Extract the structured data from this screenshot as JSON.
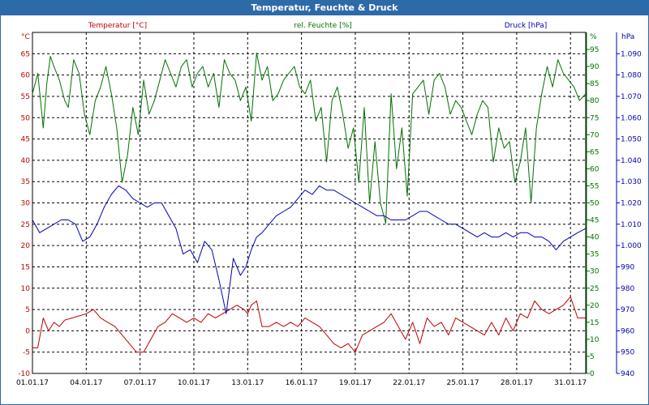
{
  "window": {
    "title": "Temperatur, Feuchte & Druck"
  },
  "colors": {
    "temperature": "#c00000",
    "humidity": "#007000",
    "pressure": "#0000b0",
    "grid": "#000000",
    "titlebar": "#2d6aa8"
  },
  "chart_data": {
    "type": "line",
    "title": "Temperatur, Feuchte & Druck",
    "x_start_day": 1,
    "x_end_day": 31.85,
    "x_tick_days": [
      1,
      4,
      7,
      10,
      13,
      16,
      19,
      22,
      25,
      28,
      31
    ],
    "x_tick_labels": [
      "01.01.17",
      "04.01.17",
      "07.01.17",
      "10.01.17",
      "13.01.17",
      "16.01.17",
      "19.01.17",
      "22.01.17",
      "25.01.17",
      "28.01.17",
      "31.01.17"
    ],
    "axes": {
      "temperature": {
        "label": "Temperatur [°C]",
        "unit": "°C",
        "ylim": [
          -10,
          70
        ],
        "ticks": [
          "-10",
          "-5",
          "0",
          "5",
          "10",
          "15",
          "20",
          "25",
          "30",
          "35",
          "40",
          "45",
          "50",
          "55",
          "60",
          "65"
        ]
      },
      "humidity": {
        "label": "rel. Feuchte [%]",
        "unit": "%",
        "ylim": [
          0,
          100
        ],
        "ticks": [
          "0",
          "5",
          "10",
          "15",
          "20",
          "25",
          "30",
          "35",
          "40",
          "45",
          "50",
          "55",
          "60",
          "65",
          "70",
          "75",
          "80",
          "85",
          "90",
          "95"
        ]
      },
      "pressure": {
        "label": "Druck [hPa]",
        "unit": "hPa",
        "ylim": [
          940,
          1100
        ],
        "ticks": [
          "940",
          "950",
          "960",
          "970",
          "980",
          "990",
          "1.000",
          "1.010",
          "1.020",
          "1.030",
          "1.040",
          "1.050",
          "1.060",
          "1.070",
          "1.080",
          "1.090"
        ]
      }
    },
    "series": [
      {
        "name": "Temperatur [°C]",
        "axis": "temperature",
        "x": [
          1,
          1.3,
          1.6,
          1.9,
          2.2,
          2.5,
          2.8,
          3.2,
          3.6,
          4.0,
          4.4,
          4.8,
          5.2,
          5.6,
          6.0,
          6.4,
          6.8,
          7.2,
          7.6,
          8.0,
          8.4,
          8.8,
          9.2,
          9.6,
          10.0,
          10.4,
          10.8,
          11.2,
          11.6,
          12.0,
          12.4,
          12.8,
          13.0,
          13.2,
          13.5,
          13.8,
          14.2,
          14.6,
          15.0,
          15.4,
          15.8,
          16.2,
          16.6,
          17.0,
          17.4,
          17.8,
          18.2,
          18.6,
          19.0,
          19.4,
          19.8,
          20.2,
          20.6,
          21.0,
          21.4,
          21.8,
          22.2,
          22.6,
          23.0,
          23.4,
          23.8,
          24.2,
          24.6,
          25.0,
          25.4,
          25.8,
          26.2,
          26.6,
          27.0,
          27.4,
          27.8,
          28.2,
          28.6,
          29.0,
          29.4,
          29.8,
          30.2,
          30.6,
          31.0,
          31.4,
          31.85
        ],
        "values": [
          -4,
          -4,
          3,
          0,
          2,
          1,
          2.5,
          3,
          3.5,
          4,
          5,
          3,
          2,
          1,
          -1,
          -3,
          -5,
          -5,
          -2,
          1,
          2,
          4,
          3,
          2,
          3,
          2,
          4,
          3,
          4,
          5,
          6,
          5,
          4,
          6,
          7,
          1,
          1,
          2,
          1,
          2,
          1,
          3,
          2,
          1,
          -1,
          -3,
          -4,
          -3,
          -5,
          -1,
          0,
          1,
          2,
          4,
          1,
          -2,
          2,
          -3,
          3,
          1,
          2,
          -1,
          3,
          2,
          1,
          0,
          -1,
          2,
          -1,
          3,
          0,
          4,
          3,
          7,
          5,
          4,
          5,
          6,
          8,
          3,
          3
        ]
      },
      {
        "name": "rel. Feuchte [%]",
        "axis": "humidity",
        "x": [
          1,
          1.3,
          1.6,
          1.8,
          2.0,
          2.2,
          2.5,
          2.8,
          3.0,
          3.3,
          3.6,
          3.9,
          4.2,
          4.5,
          4.8,
          5.1,
          5.4,
          5.7,
          6.0,
          6.3,
          6.6,
          6.9,
          7.2,
          7.5,
          7.8,
          8.1,
          8.4,
          8.7,
          9.0,
          9.3,
          9.6,
          9.9,
          10.2,
          10.5,
          10.8,
          11.1,
          11.4,
          11.7,
          12.0,
          12.3,
          12.6,
          12.9,
          13.2,
          13.5,
          13.8,
          14.1,
          14.4,
          14.7,
          15.0,
          15.3,
          15.6,
          15.9,
          16.2,
          16.5,
          16.8,
          17.1,
          17.4,
          17.7,
          18.0,
          18.3,
          18.6,
          18.9,
          19.2,
          19.5,
          19.8,
          20.1,
          20.4,
          20.7,
          21.0,
          21.3,
          21.6,
          21.9,
          22.2,
          22.5,
          22.8,
          23.1,
          23.4,
          23.7,
          24.0,
          24.3,
          24.6,
          24.9,
          25.2,
          25.5,
          25.8,
          26.1,
          26.4,
          26.7,
          27.0,
          27.3,
          27.6,
          27.9,
          28.2,
          28.5,
          28.8,
          29.1,
          29.4,
          29.7,
          30.0,
          30.3,
          30.6,
          30.9,
          31.2,
          31.5,
          31.85
        ],
        "values": [
          82,
          88,
          72,
          85,
          93,
          90,
          86,
          80,
          78,
          92,
          88,
          76,
          70,
          80,
          84,
          90,
          82,
          72,
          56,
          64,
          78,
          70,
          86,
          76,
          80,
          86,
          92,
          88,
          84,
          90,
          92,
          84,
          88,
          90,
          84,
          88,
          78,
          92,
          88,
          86,
          80,
          84,
          74,
          94,
          86,
          90,
          80,
          82,
          86,
          88,
          90,
          84,
          82,
          86,
          74,
          78,
          62,
          80,
          84,
          76,
          66,
          72,
          56,
          78,
          50,
          68,
          50,
          44,
          82,
          60,
          72,
          52,
          82,
          84,
          86,
          76,
          86,
          88,
          84,
          76,
          80,
          78,
          74,
          70,
          76,
          80,
          78,
          62,
          72,
          66,
          68,
          56,
          62,
          72,
          50,
          72,
          82,
          90,
          84,
          92,
          88,
          86,
          84,
          80,
          82
        ]
      },
      {
        "name": "Druck [hPa]",
        "axis": "pressure",
        "x": [
          1,
          1.4,
          1.8,
          2.2,
          2.6,
          3.0,
          3.4,
          3.8,
          4.2,
          4.6,
          5.0,
          5.4,
          5.8,
          6.2,
          6.6,
          7.0,
          7.4,
          7.8,
          8.2,
          8.6,
          9.0,
          9.4,
          9.8,
          10.2,
          10.6,
          11.0,
          11.4,
          11.8,
          12.2,
          12.6,
          12.9,
          13.2,
          13.5,
          13.8,
          14.2,
          14.6,
          15.0,
          15.4,
          15.8,
          16.2,
          16.6,
          17.0,
          17.4,
          17.8,
          18.2,
          18.6,
          19.0,
          19.4,
          19.8,
          20.2,
          20.6,
          21.0,
          21.4,
          21.8,
          22.2,
          22.6,
          23.0,
          23.4,
          23.8,
          24.2,
          24.6,
          25.0,
          25.4,
          25.8,
          26.2,
          26.6,
          27.0,
          27.4,
          27.8,
          28.2,
          28.6,
          29.0,
          29.4,
          29.8,
          30.2,
          30.6,
          31.0,
          31.4,
          31.85
        ],
        "values": [
          1012,
          1006,
          1008,
          1010,
          1012,
          1012,
          1010,
          1002,
          1004,
          1010,
          1018,
          1024,
          1028,
          1026,
          1022,
          1020,
          1018,
          1020,
          1020,
          1014,
          1008,
          996,
          998,
          992,
          1002,
          998,
          984,
          968,
          994,
          986,
          990,
          998,
          1004,
          1006,
          1010,
          1014,
          1016,
          1018,
          1022,
          1026,
          1024,
          1028,
          1026,
          1026,
          1024,
          1022,
          1020,
          1018,
          1016,
          1014,
          1014,
          1012,
          1012,
          1012,
          1014,
          1016,
          1016,
          1014,
          1012,
          1010,
          1010,
          1008,
          1006,
          1004,
          1006,
          1004,
          1004,
          1006,
          1004,
          1006,
          1006,
          1004,
          1004,
          1002,
          998,
          1002,
          1004,
          1006,
          1008
        ]
      }
    ]
  }
}
